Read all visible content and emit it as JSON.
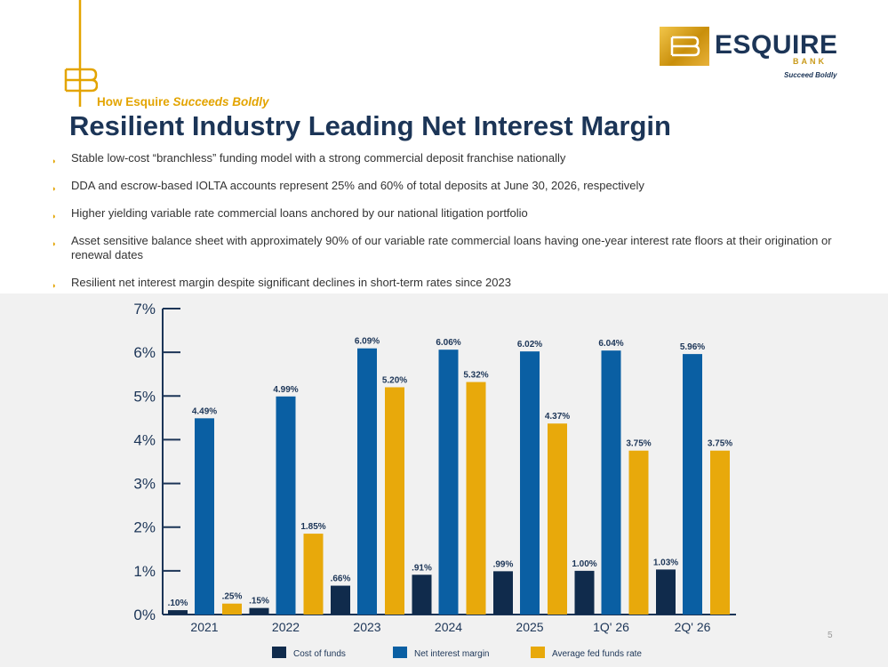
{
  "header": {
    "subtitle_prefix": "How Esquire ",
    "subtitle_emphasis": "Succeeds Boldly",
    "title": "Resilient Industry Leading Net Interest Margin"
  },
  "brand": {
    "name": "ESQUIRE",
    "sub": "BANK",
    "tagline": "Succeed Boldly",
    "colors": {
      "navy": "#1c3557",
      "gold": "#e3a400"
    }
  },
  "bullets": [
    "Stable low-cost “branchless” funding model with a strong commercial deposit franchise nationally",
    "DDA and escrow-based IOLTA accounts represent 25% and 60% of total deposits at June 30, 2026, respectively",
    "Higher yielding variable rate commercial loans anchored by our national litigation portfolio",
    "Asset sensitive balance sheet with approximately 90% of our variable rate commercial loans having one-year interest rate floors at their origination or renewal dates",
    "Resilient net interest margin despite significant declines in short-term rates since 2023"
  ],
  "chart_data": {
    "type": "bar",
    "categories": [
      "2021",
      "2022",
      "2023",
      "2024",
      "2025",
      "1Q' 26",
      "2Q' 26"
    ],
    "series": [
      {
        "name": "Cost of funds",
        "color": "#102b4c",
        "values": [
          0.1,
          0.15,
          0.66,
          0.91,
          0.99,
          1.0,
          1.03
        ],
        "labels": [
          ".10%",
          ".15%",
          ".66%",
          ".91%",
          ".99%",
          "1.00%",
          "1.03%"
        ]
      },
      {
        "name": "Net interest margin",
        "color": "#0a5fa3",
        "values": [
          4.49,
          4.99,
          6.09,
          6.06,
          6.02,
          6.04,
          5.96
        ],
        "labels": [
          "4.49%",
          "4.99%",
          "6.09%",
          "6.06%",
          "6.02%",
          "6.04%",
          "5.96%"
        ]
      },
      {
        "name": "Average fed funds rate",
        "color": "#e8a90b",
        "values": [
          0.25,
          1.85,
          5.2,
          5.32,
          4.37,
          3.75,
          3.75
        ],
        "labels": [
          ".25%",
          "1.85%",
          "5.20%",
          "5.32%",
          "4.37%",
          "3.75%",
          "3.75%"
        ]
      }
    ],
    "ylim": [
      0,
      7
    ],
    "yticks": [
      "0%",
      "1%",
      "2%",
      "3%",
      "4%",
      "5%",
      "6%",
      "7%"
    ],
    "legend": "bottom",
    "grid": false
  },
  "page_number": "5"
}
